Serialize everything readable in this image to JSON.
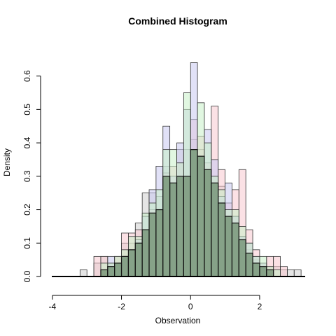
{
  "chart_data": {
    "type": "histogram",
    "title": "Combined Histogram",
    "xlabel": "Observation",
    "ylabel": "Density",
    "xlim": [
      -4.2,
      3.4
    ],
    "ylim": [
      0,
      0.66
    ],
    "x_ticks": [
      -4,
      -2,
      0,
      2
    ],
    "x_tick_labels": [
      "-4",
      "-2",
      "0",
      "2"
    ],
    "y_ticks": [
      0.0,
      0.1,
      0.2,
      0.3,
      0.4,
      0.5,
      0.6
    ],
    "y_tick_labels": [
      "0.0",
      "0.1",
      "0.2",
      "0.3",
      "0.4",
      "0.5",
      "0.6"
    ],
    "bin_width": 0.2,
    "grid": false,
    "series": [
      {
        "color": "#d0d0d0",
        "bins": [
          {
            "x0": -3.2,
            "h": 0.02
          },
          {
            "x0": -2.8,
            "h": 0.04
          },
          {
            "x0": -2.6,
            "h": 0.06
          },
          {
            "x0": -2.4,
            "h": 0.04
          },
          {
            "x0": -2.2,
            "h": 0.06
          },
          {
            "x0": -2.0,
            "h": 0.1
          },
          {
            "x0": -1.8,
            "h": 0.1
          },
          {
            "x0": -1.6,
            "h": 0.16
          },
          {
            "x0": -1.4,
            "h": 0.25
          },
          {
            "x0": -1.2,
            "h": 0.25
          },
          {
            "x0": -1.0,
            "h": 0.24
          },
          {
            "x0": -0.8,
            "h": 0.33
          },
          {
            "x0": -0.6,
            "h": 0.28
          },
          {
            "x0": -0.4,
            "h": 0.38
          },
          {
            "x0": -0.2,
            "h": 0.38
          },
          {
            "x0": 0.0,
            "h": 0.41
          },
          {
            "x0": 0.2,
            "h": 0.38
          },
          {
            "x0": 0.4,
            "h": 0.32
          },
          {
            "x0": 0.6,
            "h": 0.3
          },
          {
            "x0": 0.8,
            "h": 0.27
          },
          {
            "x0": 1.0,
            "h": 0.2
          },
          {
            "x0": 1.2,
            "h": 0.18
          },
          {
            "x0": 1.4,
            "h": 0.12
          },
          {
            "x0": 1.6,
            "h": 0.08
          },
          {
            "x0": 1.8,
            "h": 0.05
          },
          {
            "x0": 2.0,
            "h": 0.04
          },
          {
            "x0": 2.2,
            "h": 0.03
          },
          {
            "x0": 2.4,
            "h": 0.03
          },
          {
            "x0": 2.6,
            "h": 0.02
          },
          {
            "x0": 2.8,
            "h": 0.02
          },
          {
            "x0": 3.0,
            "h": 0.02
          }
        ]
      },
      {
        "color": "#f8c8d0",
        "bins": [
          {
            "x0": -2.8,
            "h": 0.06
          },
          {
            "x0": -2.6,
            "h": 0.06
          },
          {
            "x0": -2.4,
            "h": 0.04
          },
          {
            "x0": -2.2,
            "h": 0.06
          },
          {
            "x0": -2.0,
            "h": 0.13
          },
          {
            "x0": -1.8,
            "h": 0.13
          },
          {
            "x0": -1.6,
            "h": 0.14
          },
          {
            "x0": -1.4,
            "h": 0.14
          },
          {
            "x0": -1.2,
            "h": 0.2
          },
          {
            "x0": -1.0,
            "h": 0.2
          },
          {
            "x0": -0.8,
            "h": 0.31
          },
          {
            "x0": -0.6,
            "h": 0.33
          },
          {
            "x0": -0.4,
            "h": 0.34
          },
          {
            "x0": -0.2,
            "h": 0.3
          },
          {
            "x0": 0.0,
            "h": 0.47
          },
          {
            "x0": 0.2,
            "h": 0.42
          },
          {
            "x0": 0.4,
            "h": 0.34
          },
          {
            "x0": 0.6,
            "h": 0.51
          },
          {
            "x0": 0.8,
            "h": 0.32
          },
          {
            "x0": 1.0,
            "h": 0.22
          },
          {
            "x0": 1.2,
            "h": 0.26
          },
          {
            "x0": 1.4,
            "h": 0.32
          },
          {
            "x0": 1.6,
            "h": 0.14
          },
          {
            "x0": 1.8,
            "h": 0.08
          },
          {
            "x0": 2.0,
            "h": 0.04
          },
          {
            "x0": 2.2,
            "h": 0.06
          },
          {
            "x0": 2.4,
            "h": 0.06
          },
          {
            "x0": 2.6,
            "h": 0.03
          }
        ]
      },
      {
        "color": "#c8c8f0",
        "bins": [
          {
            "x0": -2.4,
            "h": 0.06
          },
          {
            "x0": -2.2,
            "h": 0.04
          },
          {
            "x0": -2.0,
            "h": 0.06
          },
          {
            "x0": -1.8,
            "h": 0.08
          },
          {
            "x0": -1.6,
            "h": 0.11
          },
          {
            "x0": -1.4,
            "h": 0.18
          },
          {
            "x0": -1.2,
            "h": 0.26
          },
          {
            "x0": -1.0,
            "h": 0.33
          },
          {
            "x0": -0.8,
            "h": 0.45
          },
          {
            "x0": -0.6,
            "h": 0.3
          },
          {
            "x0": -0.4,
            "h": 0.4
          },
          {
            "x0": -0.2,
            "h": 0.5
          },
          {
            "x0": 0.0,
            "h": 0.64
          },
          {
            "x0": 0.2,
            "h": 0.36
          },
          {
            "x0": 0.4,
            "h": 0.44
          },
          {
            "x0": 0.6,
            "h": 0.35
          },
          {
            "x0": 0.8,
            "h": 0.24
          },
          {
            "x0": 1.0,
            "h": 0.28
          },
          {
            "x0": 1.2,
            "h": 0.18
          },
          {
            "x0": 1.4,
            "h": 0.12
          },
          {
            "x0": 1.6,
            "h": 0.1
          },
          {
            "x0": 1.8,
            "h": 0.06
          },
          {
            "x0": 2.0,
            "h": 0.04
          }
        ]
      },
      {
        "color": "#c8f0c8",
        "bins": [
          {
            "x0": -2.6,
            "h": 0.04
          },
          {
            "x0": -2.4,
            "h": 0.04
          },
          {
            "x0": -2.2,
            "h": 0.06
          },
          {
            "x0": -2.0,
            "h": 0.08
          },
          {
            "x0": -1.8,
            "h": 0.12
          },
          {
            "x0": -1.6,
            "h": 0.12
          },
          {
            "x0": -1.4,
            "h": 0.19
          },
          {
            "x0": -1.2,
            "h": 0.22
          },
          {
            "x0": -1.0,
            "h": 0.26
          },
          {
            "x0": -0.8,
            "h": 0.38
          },
          {
            "x0": -0.6,
            "h": 0.38
          },
          {
            "x0": -0.4,
            "h": 0.34
          },
          {
            "x0": -0.2,
            "h": 0.55
          },
          {
            "x0": 0.0,
            "h": 0.38
          },
          {
            "x0": 0.2,
            "h": 0.52
          },
          {
            "x0": 0.4,
            "h": 0.4
          },
          {
            "x0": 0.6,
            "h": 0.3
          },
          {
            "x0": 0.8,
            "h": 0.26
          },
          {
            "x0": 1.0,
            "h": 0.2
          },
          {
            "x0": 1.2,
            "h": 0.2
          },
          {
            "x0": 1.4,
            "h": 0.15
          },
          {
            "x0": 1.6,
            "h": 0.1
          },
          {
            "x0": 1.8,
            "h": 0.06
          },
          {
            "x0": 2.0,
            "h": 0.06
          },
          {
            "x0": 2.2,
            "h": 0.03
          },
          {
            "x0": 2.4,
            "h": 0.02
          }
        ]
      }
    ],
    "overlap_fill": "#6e8c6e",
    "overlap_bins": [
      {
        "x0": -2.6,
        "h": 0.02
      },
      {
        "x0": -2.4,
        "h": 0.03
      },
      {
        "x0": -2.2,
        "h": 0.04
      },
      {
        "x0": -2.0,
        "h": 0.06
      },
      {
        "x0": -1.8,
        "h": 0.08
      },
      {
        "x0": -1.6,
        "h": 0.1
      },
      {
        "x0": -1.4,
        "h": 0.14
      },
      {
        "x0": -1.2,
        "h": 0.19
      },
      {
        "x0": -1.0,
        "h": 0.2
      },
      {
        "x0": -0.8,
        "h": 0.3
      },
      {
        "x0": -0.6,
        "h": 0.28
      },
      {
        "x0": -0.4,
        "h": 0.3
      },
      {
        "x0": -0.2,
        "h": 0.3
      },
      {
        "x0": 0.0,
        "h": 0.38
      },
      {
        "x0": 0.2,
        "h": 0.36
      },
      {
        "x0": 0.4,
        "h": 0.32
      },
      {
        "x0": 0.6,
        "h": 0.28
      },
      {
        "x0": 0.8,
        "h": 0.22
      },
      {
        "x0": 1.0,
        "h": 0.18
      },
      {
        "x0": 1.2,
        "h": 0.16
      },
      {
        "x0": 1.4,
        "h": 0.11
      },
      {
        "x0": 1.6,
        "h": 0.07
      },
      {
        "x0": 1.8,
        "h": 0.04
      },
      {
        "x0": 2.0,
        "h": 0.03
      },
      {
        "x0": 2.2,
        "h": 0.02
      }
    ]
  }
}
